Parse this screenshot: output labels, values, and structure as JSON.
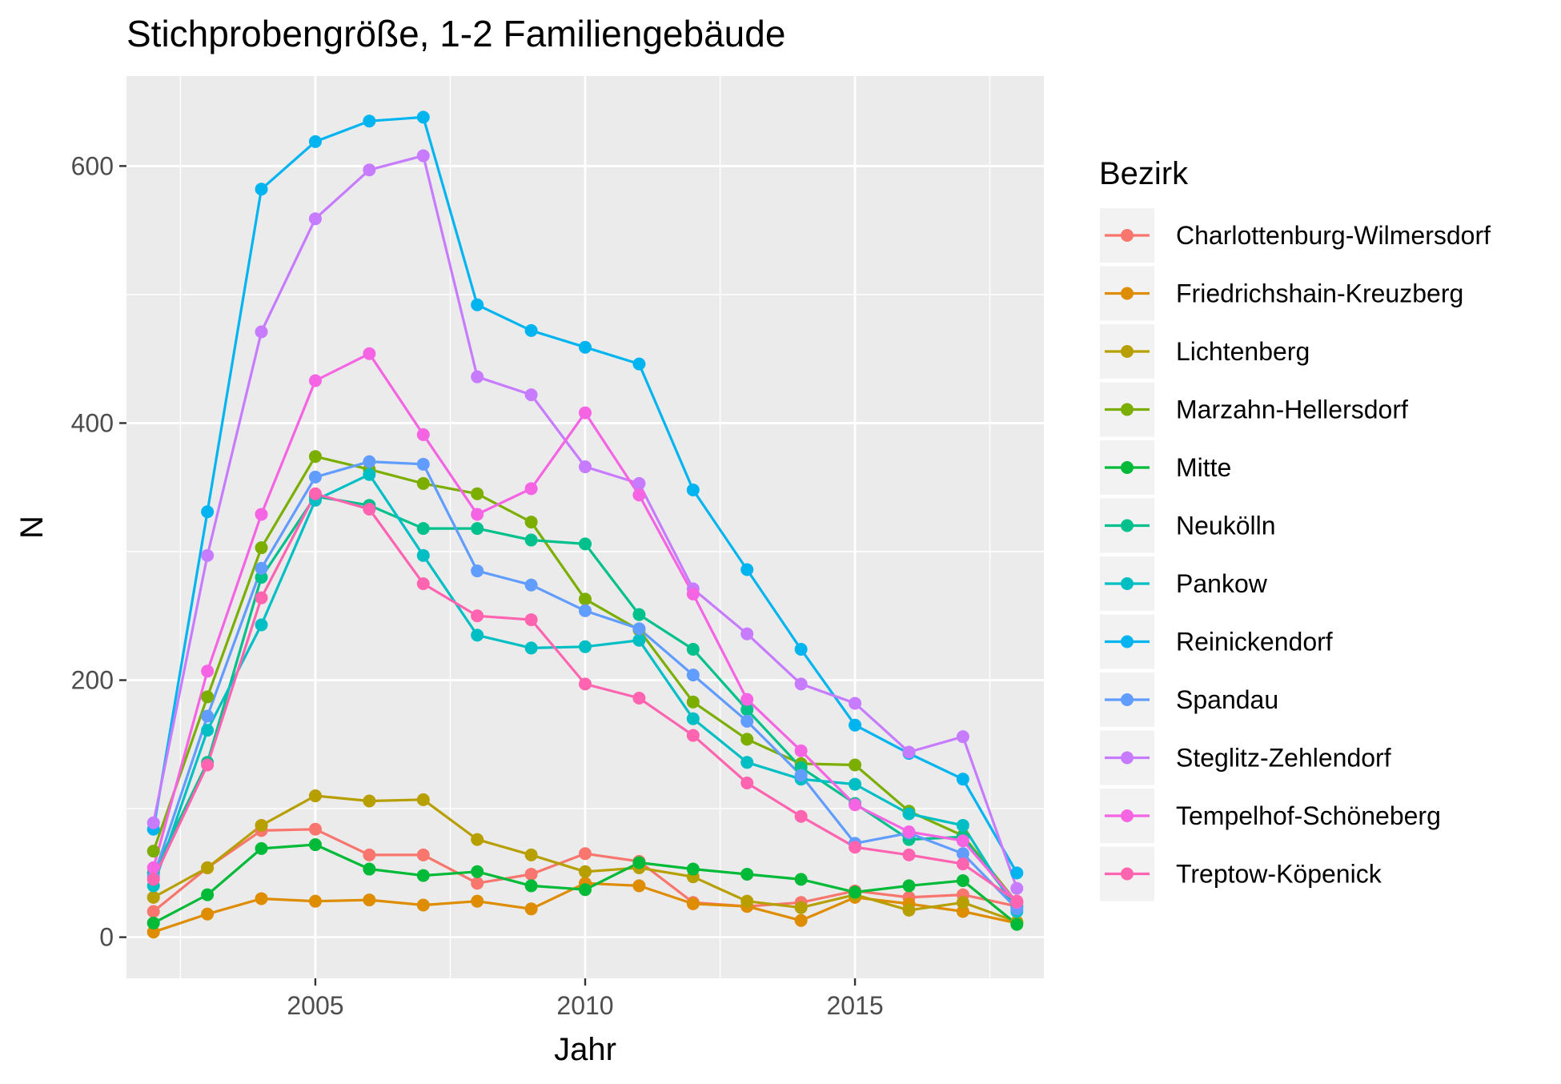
{
  "chart_data": {
    "type": "line",
    "title": "Stichprobengröße, 1-2 Familiengebäude",
    "xlabel": "Jahr",
    "ylabel": "N",
    "xlim": [
      2001.5,
      2018.5
    ],
    "ylim": [
      -32,
      670
    ],
    "x_ticks": [
      2005,
      2010,
      2015
    ],
    "x_tick_labels": [
      "2005",
      "2010",
      "2015"
    ],
    "x_minor_ticks": [
      2002.5,
      2007.5,
      2012.5,
      2017.5
    ],
    "y_ticks": [
      0,
      200,
      400,
      600
    ],
    "y_tick_labels": [
      "0",
      "200",
      "400",
      "600"
    ],
    "y_minor_ticks": [
      100,
      300,
      500
    ],
    "grid": true,
    "legend_title": "Bezirk",
    "legend_position": "right",
    "panel_background": "#ebebeb",
    "grid_color": "#ffffff",
    "x": [
      2002,
      2003,
      2004,
      2005,
      2006,
      2007,
      2008,
      2009,
      2010,
      2011,
      2012,
      2013,
      2014,
      2015,
      2016,
      2017,
      2018
    ],
    "series": [
      {
        "name": "Charlottenburg-Wilmersdorf",
        "color": "#F8766D",
        "values": [
          20,
          54,
          83,
          84,
          64,
          64,
          42,
          49,
          65,
          59,
          27,
          24,
          27,
          36,
          31,
          33,
          24
        ]
      },
      {
        "name": "Friedrichshain-Kreuzberg",
        "color": "#DE8C00",
        "values": [
          4,
          18,
          30,
          28,
          29,
          25,
          28,
          22,
          42,
          40,
          26,
          24,
          13,
          31,
          26,
          20,
          11
        ]
      },
      {
        "name": "Lichtenberg",
        "color": "#B79F00",
        "values": [
          31,
          54,
          87,
          110,
          106,
          107,
          76,
          64,
          51,
          54,
          47,
          28,
          23,
          33,
          21,
          27,
          12
        ]
      },
      {
        "name": "Marzahn-Hellersdorf",
        "color": "#7CAE00",
        "values": [
          67,
          187,
          303,
          374,
          364,
          353,
          345,
          323,
          263,
          239,
          183,
          154,
          135,
          134,
          98,
          79,
          27
        ]
      },
      {
        "name": "Mitte",
        "color": "#00BA38",
        "values": [
          11,
          33,
          69,
          72,
          53,
          48,
          51,
          40,
          37,
          58,
          53,
          49,
          45,
          35,
          40,
          44,
          10
        ]
      },
      {
        "name": "Neukölln",
        "color": "#00C08B",
        "values": [
          50,
          136,
          280,
          343,
          336,
          318,
          318,
          309,
          306,
          251,
          224,
          177,
          132,
          104,
          76,
          78,
          24
        ]
      },
      {
        "name": "Pankow",
        "color": "#00BFC4",
        "values": [
          40,
          161,
          243,
          340,
          360,
          297,
          235,
          225,
          226,
          231,
          170,
          136,
          123,
          119,
          96,
          87,
          20
        ]
      },
      {
        "name": "Reinickendorf",
        "color": "#00B4F0",
        "values": [
          84,
          331,
          582,
          619,
          635,
          638,
          492,
          472,
          459,
          446,
          348,
          286,
          224,
          165,
          143,
          123,
          50
        ]
      },
      {
        "name": "Spandau",
        "color": "#619CFF",
        "values": [
          47,
          172,
          287,
          358,
          370,
          368,
          285,
          274,
          254,
          240,
          204,
          168,
          126,
          73,
          81,
          65,
          22
        ]
      },
      {
        "name": "Steglitz-Zehlendorf",
        "color": "#C77CFF",
        "values": [
          89,
          297,
          471,
          559,
          597,
          608,
          436,
          422,
          366,
          353,
          271,
          236,
          197,
          182,
          144,
          156,
          38
        ]
      },
      {
        "name": "Tempelhof-Schöneberg",
        "color": "#F564E3",
        "values": [
          54,
          207,
          329,
          433,
          454,
          391,
          329,
          349,
          408,
          344,
          267,
          185,
          145,
          103,
          82,
          75,
          27
        ]
      },
      {
        "name": "Treptow-Köpenick",
        "color": "#FF64B0",
        "values": [
          45,
          134,
          264,
          345,
          333,
          275,
          250,
          247,
          197,
          186,
          157,
          120,
          94,
          70,
          64,
          57,
          28
        ]
      }
    ]
  }
}
